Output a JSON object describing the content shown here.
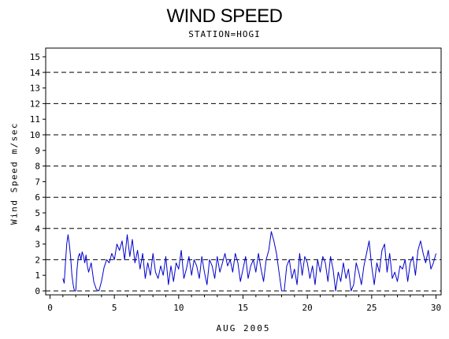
{
  "chart_data": {
    "type": "line",
    "title": "WIND SPEED",
    "subtitle": "STATION=HOGI",
    "xlabel": "AUG 2005",
    "ylabel": "Wind Speed m/sec",
    "xlim": [
      0,
      30
    ],
    "ylim": [
      0,
      15
    ],
    "x_ticks": [
      "0",
      "5",
      "10",
      "15",
      "20",
      "25",
      "30"
    ],
    "y_ticks": [
      "0",
      "1",
      "2",
      "3",
      "4",
      "5",
      "6",
      "7",
      "8",
      "9",
      "10",
      "11",
      "12",
      "13",
      "14",
      "15"
    ],
    "reference_lines": [
      0,
      2,
      4,
      6,
      8,
      10,
      12,
      14
    ],
    "line_color": "#0000cc",
    "series": [
      {
        "x": [
          1.0,
          1.1,
          1.2,
          1.3,
          1.4,
          1.5,
          1.6,
          1.7,
          1.8,
          1.9,
          2.0,
          2.1,
          2.2,
          2.3,
          2.4,
          2.5,
          2.6,
          2.7,
          2.8,
          2.9,
          3.0,
          3.2,
          3.4,
          3.6,
          3.8,
          4.0,
          4.2,
          4.4,
          4.6,
          4.8,
          5.0,
          5.2,
          5.4,
          5.6,
          5.8,
          6.0,
          6.2,
          6.4,
          6.6,
          6.8,
          7.0,
          7.2,
          7.4,
          7.6,
          7.8,
          8.0,
          8.2,
          8.4,
          8.6,
          8.8,
          9.0,
          9.2,
          9.4,
          9.6,
          9.8,
          10.0,
          10.2,
          10.4,
          10.6,
          10.8,
          11.0,
          11.2,
          11.4,
          11.6,
          11.8,
          12.0,
          12.2,
          12.4,
          12.6,
          12.8,
          13.0,
          13.2,
          13.4,
          13.6,
          13.8,
          14.0,
          14.2,
          14.4,
          14.6,
          14.8,
          15.0,
          15.2,
          15.4,
          15.6,
          15.8,
          16.0,
          16.2,
          16.4,
          16.6,
          16.8,
          17.0,
          17.2,
          17.4,
          17.6,
          17.8,
          18.0,
          18.2,
          18.4,
          18.6,
          18.8,
          19.0,
          19.2,
          19.4,
          19.6,
          19.8,
          20.0,
          20.2,
          20.4,
          20.6,
          20.8,
          21.0,
          21.2,
          21.4,
          21.6,
          21.8,
          22.0,
          22.2,
          22.4,
          22.6,
          22.8,
          23.0,
          23.2,
          23.4,
          23.6,
          23.8,
          24.0,
          24.2,
          24.4,
          24.6,
          24.8,
          25.0,
          25.2,
          25.4,
          25.6,
          25.8,
          26.0,
          26.2,
          26.4,
          26.6,
          26.8,
          27.0,
          27.2,
          27.4,
          27.6,
          27.8,
          28.0,
          28.2,
          28.4,
          28.6,
          28.8,
          29.0,
          29.2,
          29.4,
          29.6,
          29.8,
          30.0
        ],
        "y": [
          0.8,
          0.5,
          1.8,
          3.0,
          3.6,
          3.0,
          2.2,
          1.0,
          0.4,
          0.0,
          0.0,
          1.4,
          2.2,
          2.4,
          2.0,
          2.5,
          2.2,
          1.8,
          2.3,
          1.6,
          1.2,
          1.8,
          0.6,
          0.1,
          0.0,
          0.6,
          1.5,
          2.0,
          1.8,
          2.4,
          2.0,
          3.0,
          2.6,
          3.2,
          2.0,
          3.6,
          2.2,
          3.3,
          1.8,
          2.6,
          1.4,
          2.4,
          0.8,
          1.8,
          1.0,
          2.4,
          1.2,
          0.8,
          1.6,
          1.0,
          2.2,
          0.4,
          1.6,
          0.6,
          1.8,
          1.4,
          2.6,
          0.8,
          1.4,
          2.2,
          1.0,
          2.0,
          1.6,
          0.8,
          2.2,
          1.2,
          0.4,
          2.0,
          1.6,
          0.8,
          2.2,
          1.2,
          1.8,
          2.4,
          1.6,
          2.0,
          1.2,
          2.4,
          1.8,
          0.6,
          1.4,
          2.2,
          0.8,
          1.6,
          2.0,
          1.2,
          2.4,
          1.4,
          0.6,
          2.0,
          2.6,
          3.8,
          3.2,
          2.4,
          1.2,
          0.0,
          0.0,
          1.6,
          2.0,
          0.8,
          1.4,
          0.4,
          2.4,
          1.0,
          2.2,
          1.8,
          0.8,
          1.6,
          0.4,
          2.0,
          1.2,
          2.2,
          1.8,
          0.6,
          2.2,
          1.4,
          0.0,
          1.2,
          0.6,
          1.8,
          0.8,
          1.4,
          0.0,
          0.4,
          1.8,
          1.2,
          0.4,
          1.6,
          2.4,
          3.2,
          1.6,
          0.4,
          1.8,
          1.2,
          2.6,
          3.0,
          1.2,
          2.4,
          0.8,
          1.2,
          0.6,
          1.6,
          1.4,
          2.0,
          0.6,
          1.8,
          2.2,
          1.0,
          2.6,
          3.2,
          2.4,
          1.8,
          2.6,
          1.4,
          1.8,
          2.4
        ]
      }
    ]
  }
}
